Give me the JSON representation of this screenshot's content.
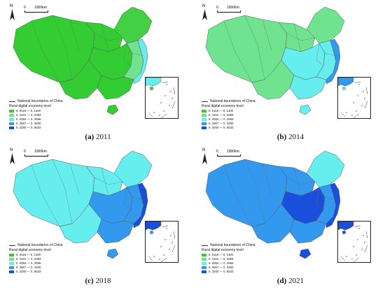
{
  "legend": {
    "boundary": "National boundaries of China",
    "title": "Rural digital economy level",
    "classes": [
      {
        "range": "0. 0118 — 0. 1400",
        "color": "#33cc33"
      },
      {
        "range": "0. 1401 — 0. 2083",
        "color": "#6fe38f"
      },
      {
        "range": "0. 2084 — 0. 2666",
        "color": "#66eeee"
      },
      {
        "range": "0. 2667 — 0. 3250",
        "color": "#3399ee"
      },
      {
        "range": "0. 3250 — 0. 6533",
        "color": "#1a4fdb"
      }
    ]
  },
  "scale": {
    "zero": "0",
    "km": "1000km"
  },
  "north": "N",
  "panels": [
    {
      "label": "(a)",
      "year": "2011",
      "fills": {
        "west": "#33cc33",
        "north": "#33cc33",
        "northeast": "#44d044",
        "central": "#33cc33",
        "east": "#6fe38f",
        "south": "#33cc33",
        "southwest": "#33cc33",
        "coast": "#66eeee",
        "hainan": "#33cc33",
        "taiwan": "#ffffff"
      }
    },
    {
      "label": "(b)",
      "year": "2014",
      "fills": {
        "west": "#6fe38f",
        "north": "#6fe38f",
        "northeast": "#6fe38f",
        "central": "#66eeee",
        "east": "#66eeee",
        "south": "#66eeee",
        "southwest": "#6fe38f",
        "coast": "#3399ee",
        "hainan": "#66eeee",
        "taiwan": "#ffffff"
      }
    },
    {
      "label": "(c)",
      "year": "2018",
      "fills": {
        "west": "#66eeee",
        "north": "#66eeee",
        "northeast": "#66eeee",
        "central": "#3399ee",
        "east": "#3399ee",
        "south": "#3399ee",
        "southwest": "#66eeee",
        "coast": "#1a4fdb",
        "hainan": "#3399ee",
        "taiwan": "#ffffff"
      }
    },
    {
      "label": "(d)",
      "year": "2021",
      "fills": {
        "west": "#3399ee",
        "north": "#3399ee",
        "northeast": "#66eeee",
        "central": "#1a4fdb",
        "east": "#3399ee",
        "south": "#3399ee",
        "southwest": "#3399ee",
        "coast": "#1a4fdb",
        "hainan": "#1a4fdb",
        "taiwan": "#ffffff"
      }
    }
  ]
}
